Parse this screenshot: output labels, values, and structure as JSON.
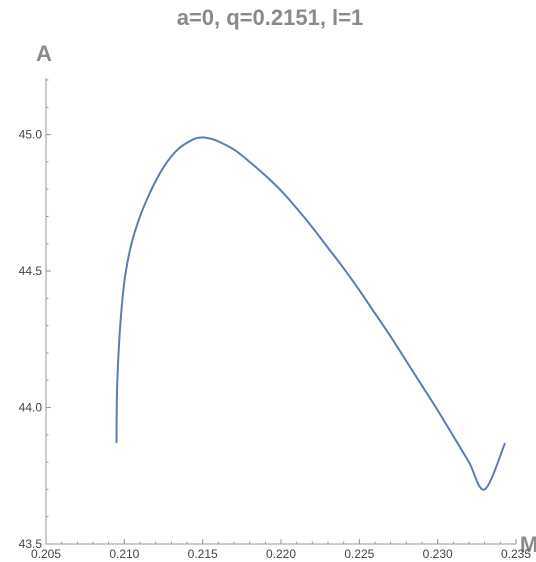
{
  "chart_data": {
    "type": "line",
    "title": "a=0, q=0.2151, l=1",
    "xlabel": "M",
    "ylabel": "A",
    "xlim": [
      0.205,
      0.235
    ],
    "ylim": [
      43.5,
      45.2
    ],
    "xticks": [
      0.205,
      0.21,
      0.215,
      0.22,
      0.225,
      0.23,
      0.235
    ],
    "xtick_labels": [
      "0.205",
      "0.210",
      "0.215",
      "0.220",
      "0.225",
      "0.230",
      "0.235"
    ],
    "yticks": [
      43.5,
      44.0,
      44.5,
      45.0
    ],
    "ytick_labels": [
      "43.5",
      "44.0",
      "44.5",
      "45.0"
    ],
    "grid": false,
    "colors": {
      "series": "#5b7db5",
      "axis": "#9a9a9a",
      "label": "#8a8a8a"
    },
    "series": [
      {
        "x": [
          0.2095,
          0.20953,
          0.20965,
          0.20985,
          0.2101,
          0.2105,
          0.211,
          0.2115,
          0.212,
          0.2125,
          0.213,
          0.2135,
          0.214,
          0.2145,
          0.215,
          0.2155,
          0.216,
          0.217,
          0.218,
          0.219,
          0.22,
          0.221,
          0.222,
          0.223,
          0.224,
          0.225,
          0.226,
          0.227,
          0.228,
          0.229,
          0.23,
          0.231,
          0.232,
          0.233,
          0.2343
        ],
        "y": [
          43.87,
          44.05,
          44.22,
          44.38,
          44.5,
          44.61,
          44.7,
          44.77,
          44.83,
          44.88,
          44.92,
          44.95,
          44.97,
          44.985,
          44.99,
          44.985,
          44.975,
          44.945,
          44.9,
          44.85,
          44.795,
          44.73,
          44.66,
          44.585,
          44.51,
          44.43,
          44.345,
          44.26,
          44.17,
          44.08,
          43.99,
          43.895,
          43.8,
          43.7,
          43.87
        ]
      }
    ]
  }
}
